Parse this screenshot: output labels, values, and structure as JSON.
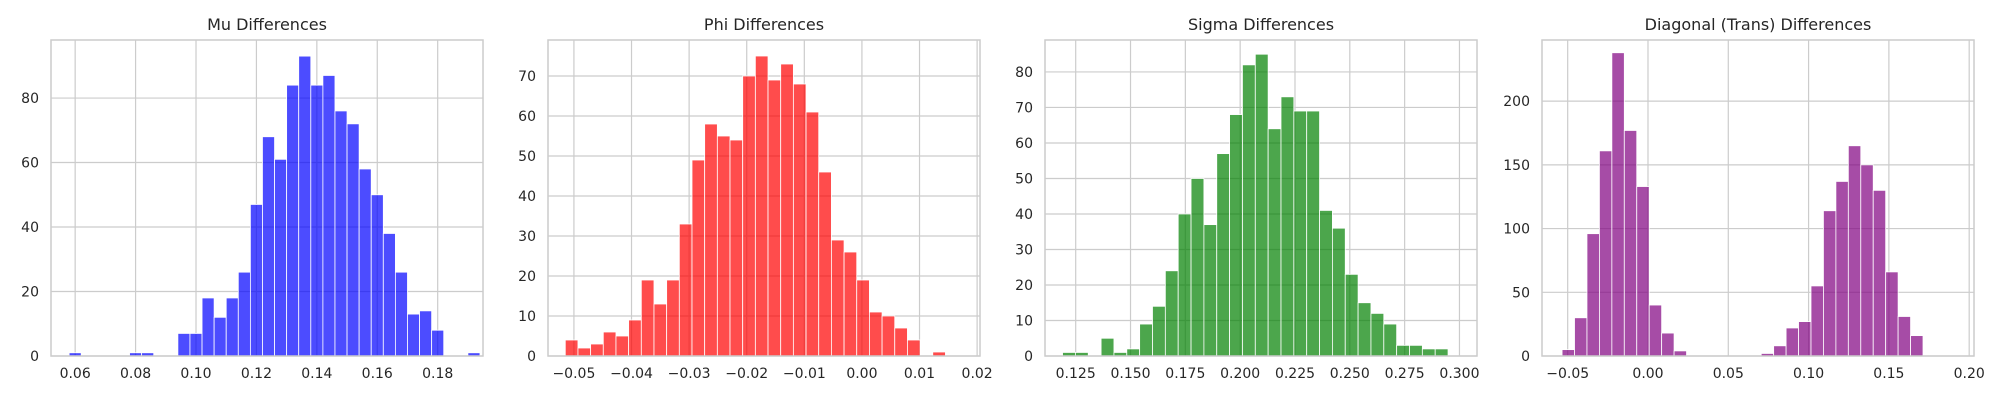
{
  "chart_data": [
    {
      "type": "bar",
      "title": "Mu Differences",
      "xlabel": "",
      "ylabel": "",
      "color": "#0000ff",
      "grid": true,
      "xlim": [
        0.052,
        0.195
      ],
      "ylim": [
        0,
        98
      ],
      "x_ticks": [
        "0.06",
        "0.08",
        "0.10",
        "0.12",
        "0.14",
        "0.16",
        "0.18"
      ],
      "x_tick_values": [
        0.06,
        0.08,
        0.1,
        0.12,
        0.14,
        0.16,
        0.18
      ],
      "y_ticks": [
        "0",
        "20",
        "40",
        "60",
        "80"
      ],
      "y_tick_values": [
        0,
        20,
        40,
        60,
        80
      ],
      "bin_start": 0.058,
      "bin_width": 0.004,
      "values": [
        1,
        0,
        0,
        0,
        0,
        1,
        1,
        0,
        0,
        7,
        7,
        18,
        12,
        18,
        26,
        47,
        68,
        61,
        84,
        93,
        84,
        87,
        76,
        72,
        58,
        50,
        38,
        26,
        13,
        14,
        8,
        0,
        0,
        1
      ]
    },
    {
      "type": "bar",
      "title": "Phi Differences",
      "xlabel": "",
      "ylabel": "",
      "color": "#ff0000",
      "grid": true,
      "xlim": [
        -0.0545,
        0.0205
      ],
      "ylim": [
        0,
        79
      ],
      "x_ticks": [
        "−0.05",
        "−0.04",
        "−0.03",
        "−0.02",
        "−0.01",
        "0.00",
        "0.01",
        "0.02"
      ],
      "x_tick_values": [
        -0.05,
        -0.04,
        -0.03,
        -0.02,
        -0.01,
        0.0,
        0.01,
        0.02
      ],
      "y_ticks": [
        "0",
        "10",
        "20",
        "30",
        "40",
        "50",
        "60",
        "70"
      ],
      "y_tick_values": [
        0,
        10,
        20,
        30,
        40,
        50,
        60,
        70
      ],
      "bin_start": -0.0515,
      "bin_width": 0.0022,
      "values": [
        4,
        2,
        3,
        6,
        5,
        9,
        19,
        13,
        19,
        33,
        49,
        58,
        55,
        54,
        70,
        75,
        69,
        73,
        68,
        61,
        46,
        29,
        26,
        19,
        11,
        10,
        7,
        4,
        0,
        1
      ]
    },
    {
      "type": "bar",
      "title": "Sigma Differences",
      "xlabel": "",
      "ylabel": "",
      "color": "#008000",
      "grid": true,
      "xlim": [
        0.111,
        0.308
      ],
      "ylim": [
        0,
        89
      ],
      "x_ticks": [
        "0.125",
        "0.150",
        "0.175",
        "0.200",
        "0.225",
        "0.250",
        "0.275",
        "0.300"
      ],
      "x_tick_values": [
        0.125,
        0.15,
        0.175,
        0.2,
        0.225,
        0.25,
        0.275,
        0.3
      ],
      "y_ticks": [
        "0",
        "10",
        "20",
        "30",
        "40",
        "50",
        "60",
        "70",
        "80"
      ],
      "y_tick_values": [
        0,
        10,
        20,
        30,
        40,
        50,
        60,
        70,
        80
      ],
      "bin_start": 0.119,
      "bin_width": 0.00586,
      "values": [
        1,
        1,
        0,
        5,
        1,
        2,
        9,
        14,
        24,
        40,
        50,
        37,
        57,
        68,
        82,
        85,
        64,
        73,
        69,
        69,
        41,
        36,
        23,
        15,
        12,
        9,
        3,
        3,
        2,
        2
      ]
    },
    {
      "type": "bar",
      "title": "Diagonal (Trans) Differences",
      "xlabel": "",
      "ylabel": "",
      "color": "#800080",
      "grid": true,
      "xlim": [
        -0.066,
        0.203
      ],
      "ylim": [
        0,
        248
      ],
      "x_ticks": [
        "−0.05",
        "0.00",
        "0.05",
        "0.10",
        "0.15",
        "0.20"
      ],
      "x_tick_values": [
        -0.05,
        0.0,
        0.05,
        0.1,
        0.15,
        0.2
      ],
      "y_ticks": [
        "0",
        "50",
        "100",
        "150",
        "200"
      ],
      "y_tick_values": [
        0,
        50,
        100,
        150,
        200
      ],
      "bin_start": -0.0535,
      "bin_width": 0.00775,
      "values": [
        5,
        30,
        96,
        161,
        238,
        177,
        133,
        40,
        18,
        4,
        0,
        0,
        0,
        0,
        0,
        0,
        2,
        8,
        22,
        27,
        55,
        114,
        137,
        165,
        150,
        130,
        66,
        31,
        16
      ]
    }
  ]
}
